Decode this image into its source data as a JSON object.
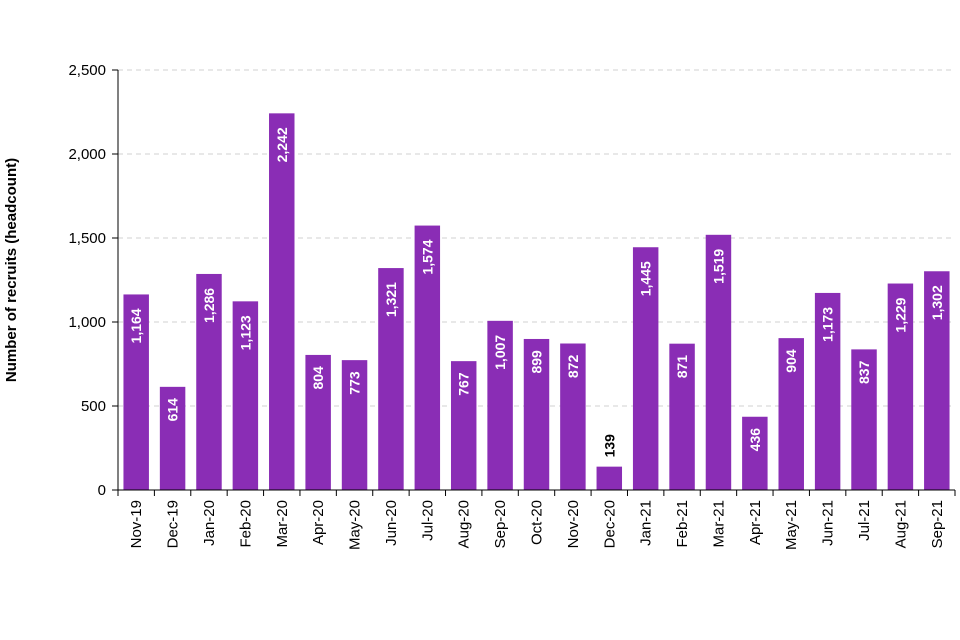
{
  "chart_data": {
    "type": "bar",
    "title": "",
    "xlabel": "",
    "ylabel": "Number of recruits (headcount)",
    "ylim": [
      0,
      2500
    ],
    "yticks": [
      0,
      500,
      1000,
      1500,
      2000,
      2500
    ],
    "ytick_labels": [
      "0",
      "500",
      "1,000",
      "1,500",
      "2,000",
      "2,500"
    ],
    "grid": true,
    "bar_color": "#8a2db5",
    "categories": [
      "Nov-19",
      "Dec-19",
      "Jan-20",
      "Feb-20",
      "Mar-20",
      "Apr-20",
      "May-20",
      "Jun-20",
      "Jul-20",
      "Aug-20",
      "Sep-20",
      "Oct-20",
      "Nov-20",
      "Dec-20",
      "Jan-21",
      "Feb-21",
      "Mar-21",
      "Apr-21",
      "May-21",
      "Jun-21",
      "Jul-21",
      "Aug-21",
      "Sep-21"
    ],
    "values": [
      1164,
      614,
      1286,
      1123,
      2242,
      804,
      773,
      1321,
      1574,
      767,
      1007,
      899,
      872,
      139,
      1445,
      871,
      1519,
      436,
      904,
      1173,
      837,
      1229,
      1302
    ],
    "value_labels": [
      "1,164",
      "614",
      "1,286",
      "1,123",
      "2,242",
      "804",
      "773",
      "1,321",
      "1,574",
      "767",
      "1,007",
      "899",
      "872",
      "139",
      "1,445",
      "871",
      "1,519",
      "436",
      "904",
      "1,173",
      "837",
      "1,229",
      "1,302"
    ]
  }
}
